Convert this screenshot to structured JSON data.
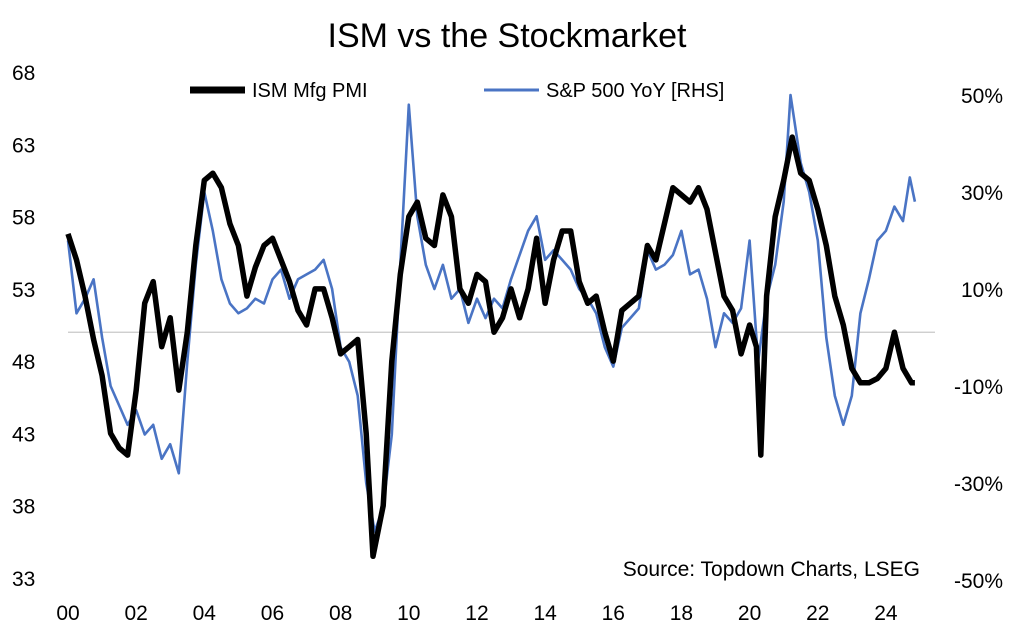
{
  "chart_data": {
    "type": "line",
    "title": "ISM vs the Stockmarket",
    "source": "Source: Topdown Charts, LSEG",
    "x_range": [
      2000,
      2025
    ],
    "x_ticks": [
      {
        "value": 2000,
        "label": "00"
      },
      {
        "value": 2002,
        "label": "02"
      },
      {
        "value": 2004,
        "label": "04"
      },
      {
        "value": 2006,
        "label": "06"
      },
      {
        "value": 2008,
        "label": "08"
      },
      {
        "value": 2010,
        "label": "10"
      },
      {
        "value": 2012,
        "label": "12"
      },
      {
        "value": 2014,
        "label": "14"
      },
      {
        "value": 2016,
        "label": "16"
      },
      {
        "value": 2018,
        "label": "18"
      },
      {
        "value": 2020,
        "label": "20"
      },
      {
        "value": 2022,
        "label": "22"
      },
      {
        "value": 2024,
        "label": "24"
      }
    ],
    "left_axis": {
      "range": [
        33,
        68
      ],
      "ticks": [
        {
          "value": 68,
          "label": "68"
        },
        {
          "value": 63,
          "label": "63"
        },
        {
          "value": 58,
          "label": "58"
        },
        {
          "value": 53,
          "label": "53"
        },
        {
          "value": 48,
          "label": "48"
        },
        {
          "value": 43,
          "label": "43"
        },
        {
          "value": 38,
          "label": "38"
        },
        {
          "value": 33,
          "label": "33"
        }
      ]
    },
    "right_axis": {
      "range": [
        -0.5,
        0.5
      ],
      "ticks": [
        {
          "value": 0.5,
          "label": "50%"
        },
        {
          "value": 0.3,
          "label": "30%"
        },
        {
          "value": 0.1,
          "label": "10%"
        },
        {
          "value": -0.1,
          "label": "-10%"
        },
        {
          "value": -0.3,
          "label": "-30%"
        },
        {
          "value": -0.5,
          "label": "-50%"
        }
      ]
    },
    "reference_line": {
      "axis": "left",
      "value": 50,
      "color": "#c8c8c8"
    },
    "grid": false,
    "legend_position": "top",
    "series": [
      {
        "name": "ISM Mfg PMI",
        "axis": "left",
        "color": "#000000",
        "points": [
          [
            2000.0,
            56.8
          ],
          [
            2000.25,
            55.0
          ],
          [
            2000.5,
            52.5
          ],
          [
            2000.75,
            49.5
          ],
          [
            2001.0,
            47.0
          ],
          [
            2001.25,
            43.0
          ],
          [
            2001.5,
            42.0
          ],
          [
            2001.75,
            41.5
          ],
          [
            2002.0,
            46.0
          ],
          [
            2002.25,
            52.0
          ],
          [
            2002.5,
            53.5
          ],
          [
            2002.75,
            49.0
          ],
          [
            2003.0,
            51.0
          ],
          [
            2003.25,
            46.0
          ],
          [
            2003.5,
            50.0
          ],
          [
            2003.75,
            56.0
          ],
          [
            2004.0,
            60.5
          ],
          [
            2004.25,
            61.0
          ],
          [
            2004.5,
            60.0
          ],
          [
            2004.75,
            57.5
          ],
          [
            2005.0,
            56.0
          ],
          [
            2005.25,
            52.5
          ],
          [
            2005.5,
            54.5
          ],
          [
            2005.75,
            56.0
          ],
          [
            2006.0,
            56.5
          ],
          [
            2006.25,
            55.0
          ],
          [
            2006.5,
            53.5
          ],
          [
            2006.75,
            51.5
          ],
          [
            2007.0,
            50.5
          ],
          [
            2007.25,
            53.0
          ],
          [
            2007.5,
            53.0
          ],
          [
            2007.75,
            51.0
          ],
          [
            2008.0,
            48.5
          ],
          [
            2008.25,
            49.0
          ],
          [
            2008.5,
            49.5
          ],
          [
            2008.75,
            43.0
          ],
          [
            2008.95,
            34.5
          ],
          [
            2009.25,
            38.0
          ],
          [
            2009.5,
            48.0
          ],
          [
            2009.75,
            54.0
          ],
          [
            2010.0,
            58.0
          ],
          [
            2010.25,
            59.0
          ],
          [
            2010.5,
            56.5
          ],
          [
            2010.75,
            56.0
          ],
          [
            2011.0,
            59.5
          ],
          [
            2011.25,
            58.0
          ],
          [
            2011.5,
            53.0
          ],
          [
            2011.75,
            52.0
          ],
          [
            2012.0,
            54.0
          ],
          [
            2012.25,
            53.5
          ],
          [
            2012.5,
            50.0
          ],
          [
            2012.75,
            51.0
          ],
          [
            2013.0,
            53.0
          ],
          [
            2013.25,
            51.0
          ],
          [
            2013.5,
            53.0
          ],
          [
            2013.75,
            56.5
          ],
          [
            2014.0,
            52.0
          ],
          [
            2014.25,
            55.0
          ],
          [
            2014.5,
            57.0
          ],
          [
            2014.75,
            57.0
          ],
          [
            2015.0,
            53.5
          ],
          [
            2015.25,
            52.0
          ],
          [
            2015.5,
            52.5
          ],
          [
            2015.75,
            50.0
          ],
          [
            2016.0,
            48.0
          ],
          [
            2016.25,
            51.5
          ],
          [
            2016.5,
            52.0
          ],
          [
            2016.75,
            52.5
          ],
          [
            2017.0,
            56.0
          ],
          [
            2017.25,
            55.0
          ],
          [
            2017.5,
            57.5
          ],
          [
            2017.75,
            60.0
          ],
          [
            2018.0,
            59.5
          ],
          [
            2018.25,
            59.0
          ],
          [
            2018.5,
            60.0
          ],
          [
            2018.75,
            58.5
          ],
          [
            2019.0,
            55.5
          ],
          [
            2019.25,
            52.5
          ],
          [
            2019.5,
            51.5
          ],
          [
            2019.75,
            48.5
          ],
          [
            2020.0,
            50.5
          ],
          [
            2020.2,
            49.0
          ],
          [
            2020.33,
            41.5
          ],
          [
            2020.5,
            52.5
          ],
          [
            2020.75,
            58.0
          ],
          [
            2021.0,
            60.5
          ],
          [
            2021.25,
            63.5
          ],
          [
            2021.5,
            61.0
          ],
          [
            2021.75,
            60.5
          ],
          [
            2022.0,
            58.5
          ],
          [
            2022.25,
            56.0
          ],
          [
            2022.5,
            52.5
          ],
          [
            2022.75,
            50.5
          ],
          [
            2023.0,
            47.5
          ],
          [
            2023.25,
            46.5
          ],
          [
            2023.5,
            46.5
          ],
          [
            2023.75,
            46.8
          ],
          [
            2024.0,
            47.5
          ],
          [
            2024.25,
            50.0
          ],
          [
            2024.5,
            47.5
          ],
          [
            2024.75,
            46.5
          ],
          [
            2024.85,
            46.5
          ]
        ]
      },
      {
        "name": "S&P 500 YoY [RHS]",
        "axis": "right",
        "color": "#4a74c4",
        "points": [
          [
            2000.0,
            0.2
          ],
          [
            2000.25,
            0.05
          ],
          [
            2000.5,
            0.08
          ],
          [
            2000.75,
            0.12
          ],
          [
            2001.0,
            0.0
          ],
          [
            2001.25,
            -0.1
          ],
          [
            2001.5,
            -0.14
          ],
          [
            2001.75,
            -0.18
          ],
          [
            2002.0,
            -0.15
          ],
          [
            2002.25,
            -0.2
          ],
          [
            2002.5,
            -0.18
          ],
          [
            2002.75,
            -0.25
          ],
          [
            2003.0,
            -0.22
          ],
          [
            2003.25,
            -0.28
          ],
          [
            2003.5,
            -0.05
          ],
          [
            2003.75,
            0.15
          ],
          [
            2004.0,
            0.3
          ],
          [
            2004.25,
            0.22
          ],
          [
            2004.5,
            0.12
          ],
          [
            2004.75,
            0.07
          ],
          [
            2005.0,
            0.05
          ],
          [
            2005.25,
            0.06
          ],
          [
            2005.5,
            0.08
          ],
          [
            2005.75,
            0.07
          ],
          [
            2006.0,
            0.12
          ],
          [
            2006.25,
            0.14
          ],
          [
            2006.5,
            0.08
          ],
          [
            2006.75,
            0.12
          ],
          [
            2007.0,
            0.13
          ],
          [
            2007.25,
            0.14
          ],
          [
            2007.5,
            0.16
          ],
          [
            2007.75,
            0.1
          ],
          [
            2008.0,
            -0.02
          ],
          [
            2008.25,
            -0.05
          ],
          [
            2008.5,
            -0.12
          ],
          [
            2008.75,
            -0.3
          ],
          [
            2009.0,
            -0.4
          ],
          [
            2009.25,
            -0.35
          ],
          [
            2009.5,
            -0.2
          ],
          [
            2009.75,
            0.15
          ],
          [
            2010.0,
            0.48
          ],
          [
            2010.25,
            0.25
          ],
          [
            2010.5,
            0.15
          ],
          [
            2010.75,
            0.1
          ],
          [
            2011.0,
            0.15
          ],
          [
            2011.25,
            0.08
          ],
          [
            2011.5,
            0.1
          ],
          [
            2011.75,
            0.03
          ],
          [
            2012.0,
            0.08
          ],
          [
            2012.25,
            0.04
          ],
          [
            2012.5,
            0.08
          ],
          [
            2012.75,
            0.06
          ],
          [
            2013.0,
            0.12
          ],
          [
            2013.25,
            0.17
          ],
          [
            2013.5,
            0.22
          ],
          [
            2013.75,
            0.25
          ],
          [
            2014.0,
            0.16
          ],
          [
            2014.25,
            0.18
          ],
          [
            2014.5,
            0.16
          ],
          [
            2014.75,
            0.14
          ],
          [
            2015.0,
            0.1
          ],
          [
            2015.25,
            0.08
          ],
          [
            2015.5,
            0.05
          ],
          [
            2015.75,
            -0.02
          ],
          [
            2016.0,
            -0.06
          ],
          [
            2016.25,
            0.02
          ],
          [
            2016.5,
            0.04
          ],
          [
            2016.75,
            0.06
          ],
          [
            2017.0,
            0.18
          ],
          [
            2017.25,
            0.14
          ],
          [
            2017.5,
            0.15
          ],
          [
            2017.75,
            0.17
          ],
          [
            2018.0,
            0.22
          ],
          [
            2018.25,
            0.13
          ],
          [
            2018.5,
            0.14
          ],
          [
            2018.75,
            0.08
          ],
          [
            2019.0,
            -0.02
          ],
          [
            2019.25,
            0.05
          ],
          [
            2019.5,
            0.03
          ],
          [
            2019.75,
            0.06
          ],
          [
            2020.0,
            0.2
          ],
          [
            2020.25,
            -0.05
          ],
          [
            2020.5,
            0.08
          ],
          [
            2020.75,
            0.15
          ],
          [
            2021.0,
            0.28
          ],
          [
            2021.2,
            0.5
          ],
          [
            2021.5,
            0.36
          ],
          [
            2021.75,
            0.3
          ],
          [
            2022.0,
            0.2
          ],
          [
            2022.25,
            0.0
          ],
          [
            2022.5,
            -0.12
          ],
          [
            2022.75,
            -0.18
          ],
          [
            2023.0,
            -0.12
          ],
          [
            2023.25,
            0.05
          ],
          [
            2023.5,
            0.12
          ],
          [
            2023.75,
            0.2
          ],
          [
            2024.0,
            0.22
          ],
          [
            2024.25,
            0.27
          ],
          [
            2024.5,
            0.24
          ],
          [
            2024.7,
            0.33
          ],
          [
            2024.85,
            0.28
          ]
        ]
      }
    ]
  }
}
